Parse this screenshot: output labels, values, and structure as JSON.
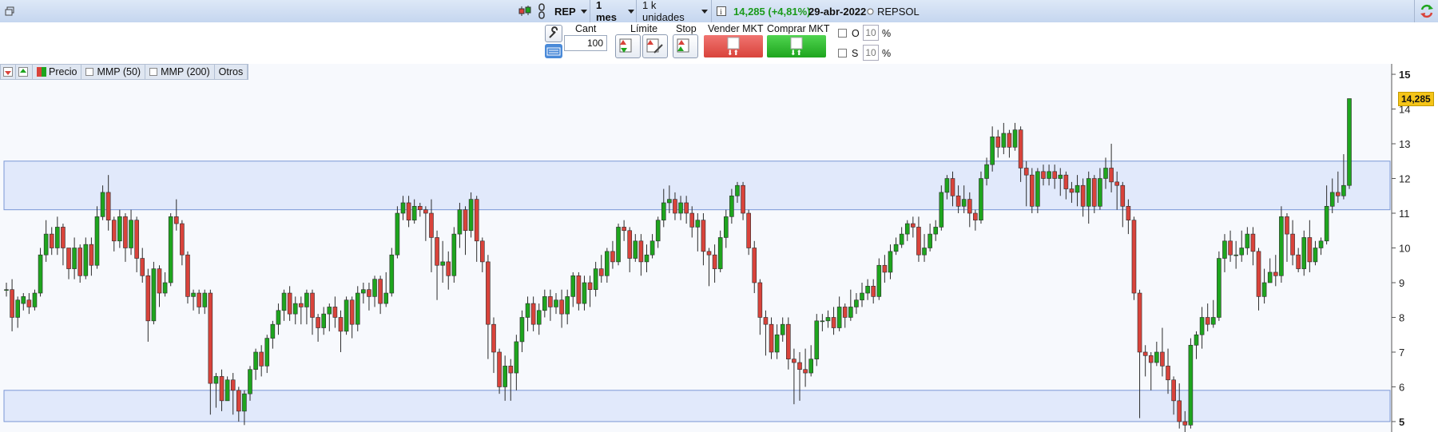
{
  "toolbar": {
    "ticker": "REP",
    "period": "1 mes",
    "units": "1 k unidades",
    "price": "14,285",
    "change": "(+4,81%)",
    "date": "29-abr-2022",
    "name": "REPSOL",
    "colors": {
      "up": "#1ea51e",
      "down": "#d9433b"
    }
  },
  "order": {
    "cant_label": "Cant",
    "cant_value": "100",
    "limit_label": "Límite",
    "stop_label": "Stop",
    "sell_label": "Vender MKT",
    "buy_label": "Comprar MKT",
    "o_label": "O",
    "s_label": "S",
    "o_value": "10",
    "s_value": "10",
    "pct": "%"
  },
  "legend": {
    "precio": "Precio",
    "mmp50": "MMP (50)",
    "mmp200": "MMP (200)",
    "otros": "Otros"
  },
  "chart_data": {
    "type": "candlestick",
    "ylim": [
      4.7,
      15.3
    ],
    "yticks": [
      5,
      6,
      7,
      8,
      9,
      10,
      11,
      12,
      13,
      14,
      15
    ],
    "last_price_label": "14,285",
    "zones": [
      {
        "low": 11.1,
        "high": 12.5
      },
      {
        "low": 5.0,
        "high": 5.9
      }
    ],
    "candles": [
      [
        8.8,
        8.8,
        9.0,
        8.6
      ],
      [
        8.8,
        8.0,
        9.1,
        7.6
      ],
      [
        8.0,
        8.5,
        8.6,
        7.7
      ],
      [
        8.4,
        8.6,
        8.7,
        8.2
      ],
      [
        8.5,
        8.3,
        8.7,
        8.1
      ],
      [
        8.3,
        8.7,
        8.8,
        8.2
      ],
      [
        8.7,
        9.8,
        10.0,
        8.6
      ],
      [
        9.8,
        10.4,
        10.8,
        9.6
      ],
      [
        10.4,
        10.0,
        10.6,
        9.8
      ],
      [
        10.0,
        10.6,
        10.9,
        9.8
      ],
      [
        10.6,
        10.0,
        10.7,
        9.5
      ],
      [
        10.0,
        9.4,
        10.0,
        9.1
      ],
      [
        9.4,
        10.0,
        10.3,
        9.1
      ],
      [
        10.0,
        9.2,
        10.1,
        9.0
      ],
      [
        9.2,
        10.1,
        10.3,
        9.1
      ],
      [
        10.1,
        9.5,
        10.3,
        9.2
      ],
      [
        9.5,
        10.9,
        11.2,
        9.4
      ],
      [
        10.9,
        11.6,
        11.8,
        10.8
      ],
      [
        11.6,
        10.8,
        12.1,
        10.5
      ],
      [
        10.8,
        10.2,
        10.9,
        9.9
      ],
      [
        10.2,
        10.9,
        11.1,
        10.0
      ],
      [
        10.9,
        10.0,
        11.0,
        9.6
      ],
      [
        10.0,
        10.8,
        11.1,
        9.8
      ],
      [
        10.8,
        9.7,
        10.9,
        9.3
      ],
      [
        9.7,
        9.2,
        10.0,
        9.0
      ],
      [
        9.2,
        7.9,
        9.4,
        7.3
      ],
      [
        7.9,
        9.4,
        9.6,
        7.8
      ],
      [
        9.4,
        8.7,
        9.5,
        8.3
      ],
      [
        8.7,
        9.0,
        9.3,
        8.6
      ],
      [
        9.0,
        10.9,
        11.0,
        8.9
      ],
      [
        10.9,
        10.7,
        11.4,
        10.5
      ],
      [
        10.7,
        9.8,
        10.8,
        9.5
      ],
      [
        9.8,
        8.6,
        9.9,
        8.4
      ],
      [
        8.6,
        8.7,
        8.8,
        8.2
      ],
      [
        8.7,
        8.3,
        8.8,
        8.1
      ],
      [
        8.3,
        8.7,
        8.8,
        8.1
      ],
      [
        8.7,
        6.1,
        8.8,
        5.2
      ],
      [
        6.1,
        6.3,
        6.4,
        5.4
      ],
      [
        6.3,
        5.6,
        6.5,
        5.3
      ],
      [
        5.6,
        6.2,
        6.3,
        5.6
      ],
      [
        6.2,
        5.9,
        6.4,
        5.2
      ],
      [
        5.9,
        5.3,
        6.0,
        5.0
      ],
      [
        5.3,
        5.8,
        5.9,
        4.9
      ],
      [
        5.8,
        6.5,
        6.6,
        5.6
      ],
      [
        6.5,
        7.0,
        7.1,
        6.2
      ],
      [
        7.0,
        6.6,
        7.2,
        6.3
      ],
      [
        6.6,
        7.4,
        7.5,
        6.4
      ],
      [
        7.4,
        7.8,
        7.9,
        7.1
      ],
      [
        7.8,
        8.2,
        8.4,
        7.5
      ],
      [
        8.2,
        8.7,
        8.8,
        7.9
      ],
      [
        8.7,
        8.1,
        8.9,
        7.9
      ],
      [
        8.1,
        8.4,
        8.6,
        7.8
      ],
      [
        8.4,
        8.3,
        8.6,
        7.8
      ],
      [
        8.3,
        8.7,
        8.8,
        7.8
      ],
      [
        8.7,
        8.0,
        8.8,
        7.5
      ],
      [
        8.0,
        7.7,
        8.1,
        7.3
      ],
      [
        7.7,
        8.1,
        8.3,
        7.5
      ],
      [
        8.1,
        8.3,
        8.4,
        7.6
      ],
      [
        8.3,
        8.0,
        8.6,
        7.7
      ],
      [
        8.0,
        7.6,
        8.2,
        7.0
      ],
      [
        7.6,
        8.5,
        8.6,
        7.5
      ],
      [
        8.5,
        7.8,
        8.6,
        7.4
      ],
      [
        7.8,
        8.7,
        8.9,
        7.6
      ],
      [
        8.7,
        8.8,
        9.0,
        8.4
      ],
      [
        8.8,
        8.6,
        9.0,
        8.2
      ],
      [
        8.6,
        9.1,
        9.2,
        8.3
      ],
      [
        9.1,
        8.4,
        9.2,
        8.1
      ],
      [
        8.4,
        8.7,
        9.3,
        8.3
      ],
      [
        8.7,
        9.8,
        10.0,
        8.6
      ],
      [
        9.8,
        11.0,
        11.2,
        9.7
      ],
      [
        11.0,
        11.3,
        11.5,
        10.8
      ],
      [
        11.3,
        10.8,
        11.5,
        10.6
      ],
      [
        10.8,
        11.2,
        11.4,
        10.7
      ],
      [
        11.2,
        11.1,
        11.3,
        10.9
      ],
      [
        11.1,
        11.0,
        11.2,
        10.2
      ],
      [
        11.0,
        10.3,
        11.4,
        9.3
      ],
      [
        10.3,
        9.5,
        10.5,
        8.5
      ],
      [
        9.5,
        9.6,
        10.2,
        9.0
      ],
      [
        9.6,
        9.2,
        9.9,
        8.8
      ],
      [
        9.2,
        10.4,
        10.6,
        9.0
      ],
      [
        10.4,
        11.1,
        11.3,
        10.0
      ],
      [
        11.1,
        10.5,
        11.2,
        9.8
      ],
      [
        10.5,
        11.4,
        11.6,
        10.3
      ],
      [
        11.4,
        10.2,
        11.5,
        9.6
      ],
      [
        10.2,
        9.6,
        10.3,
        9.3
      ],
      [
        9.6,
        7.8,
        9.8,
        6.8
      ],
      [
        7.8,
        7.0,
        8.0,
        6.4
      ],
      [
        7.0,
        6.0,
        7.1,
        5.8
      ],
      [
        6.0,
        6.6,
        6.9,
        5.6
      ],
      [
        6.6,
        6.4,
        6.8,
        5.6
      ],
      [
        6.4,
        7.3,
        7.5,
        5.9
      ],
      [
        7.3,
        8.0,
        8.2,
        7.0
      ],
      [
        8.0,
        8.4,
        8.6,
        7.6
      ],
      [
        8.4,
        7.8,
        8.6,
        7.6
      ],
      [
        7.8,
        8.2,
        8.4,
        7.5
      ],
      [
        8.2,
        8.6,
        8.8,
        8.0
      ],
      [
        8.6,
        8.3,
        8.8,
        7.9
      ],
      [
        8.3,
        8.5,
        8.7,
        8.1
      ],
      [
        8.5,
        8.1,
        8.8,
        7.7
      ],
      [
        8.1,
        8.6,
        8.8,
        7.8
      ],
      [
        8.6,
        9.2,
        9.3,
        8.3
      ],
      [
        9.2,
        8.4,
        9.3,
        8.2
      ],
      [
        8.4,
        9.0,
        9.2,
        8.2
      ],
      [
        9.0,
        8.8,
        9.2,
        8.3
      ],
      [
        8.8,
        9.4,
        9.6,
        8.6
      ],
      [
        9.4,
        9.2,
        9.8,
        9.0
      ],
      [
        9.2,
        9.9,
        10.0,
        9.0
      ],
      [
        9.9,
        9.6,
        10.2,
        9.4
      ],
      [
        9.6,
        10.6,
        10.7,
        9.5
      ],
      [
        10.6,
        10.5,
        10.8,
        10.2
      ],
      [
        10.5,
        9.7,
        10.6,
        9.3
      ],
      [
        9.7,
        10.2,
        10.4,
        9.6
      ],
      [
        10.2,
        9.6,
        10.4,
        9.2
      ],
      [
        9.6,
        9.8,
        10.1,
        9.3
      ],
      [
        9.8,
        10.2,
        10.4,
        9.7
      ],
      [
        10.2,
        10.8,
        10.9,
        10.0
      ],
      [
        10.8,
        11.3,
        11.7,
        10.6
      ],
      [
        11.3,
        11.4,
        11.8,
        11.0
      ],
      [
        11.4,
        11.0,
        11.6,
        10.8
      ],
      [
        11.0,
        11.3,
        11.5,
        10.8
      ],
      [
        11.3,
        11.0,
        11.5,
        10.7
      ],
      [
        11.0,
        10.6,
        11.2,
        10.3
      ],
      [
        10.6,
        10.8,
        11.0,
        9.9
      ],
      [
        10.8,
        9.9,
        11.0,
        9.5
      ],
      [
        9.9,
        9.8,
        10.0,
        8.9
      ],
      [
        9.8,
        9.4,
        10.1,
        9.0
      ],
      [
        9.4,
        10.3,
        10.5,
        9.3
      ],
      [
        10.3,
        10.9,
        11.1,
        10.0
      ],
      [
        10.9,
        11.5,
        11.7,
        10.7
      ],
      [
        11.5,
        11.8,
        11.9,
        11.3
      ],
      [
        11.8,
        11.0,
        11.9,
        10.8
      ],
      [
        11.0,
        10.0,
        11.1,
        9.8
      ],
      [
        10.0,
        9.0,
        10.2,
        8.7
      ],
      [
        9.0,
        8.0,
        9.1,
        7.5
      ],
      [
        8.0,
        7.8,
        8.2,
        6.9
      ],
      [
        7.8,
        7.0,
        8.0,
        6.8
      ],
      [
        7.0,
        7.5,
        7.8,
        6.8
      ],
      [
        7.5,
        7.8,
        8.0,
        7.3
      ],
      [
        7.8,
        6.8,
        8.0,
        6.5
      ],
      [
        6.8,
        6.7,
        7.1,
        5.5
      ],
      [
        6.7,
        6.5,
        7.0,
        5.6
      ],
      [
        6.5,
        6.4,
        7.1,
        6.0
      ],
      [
        6.4,
        6.8,
        7.2,
        6.3
      ],
      [
        6.8,
        7.9,
        8.1,
        6.6
      ],
      [
        7.9,
        7.9,
        8.1,
        7.6
      ],
      [
        7.9,
        8.0,
        8.2,
        7.7
      ],
      [
        8.0,
        7.7,
        8.3,
        7.5
      ],
      [
        7.7,
        8.3,
        8.6,
        7.6
      ],
      [
        8.3,
        8.0,
        8.4,
        7.7
      ],
      [
        8.0,
        8.3,
        8.8,
        7.9
      ],
      [
        8.3,
        8.5,
        8.7,
        8.1
      ],
      [
        8.5,
        8.7,
        9.0,
        8.3
      ],
      [
        8.7,
        8.9,
        9.1,
        8.5
      ],
      [
        8.9,
        8.6,
        9.1,
        8.4
      ],
      [
        8.6,
        9.5,
        9.7,
        8.5
      ],
      [
        9.5,
        9.3,
        9.8,
        9.0
      ],
      [
        9.3,
        9.9,
        10.1,
        9.1
      ],
      [
        9.9,
        10.1,
        10.3,
        9.8
      ],
      [
        10.1,
        10.4,
        10.6,
        10.0
      ],
      [
        10.4,
        10.7,
        10.8,
        10.2
      ],
      [
        10.7,
        10.6,
        10.9,
        10.3
      ],
      [
        10.6,
        9.8,
        10.9,
        9.6
      ],
      [
        9.8,
        10.0,
        10.4,
        9.6
      ],
      [
        10.0,
        10.4,
        10.7,
        9.9
      ],
      [
        10.4,
        10.6,
        10.8,
        10.2
      ],
      [
        10.6,
        11.6,
        11.8,
        10.5
      ],
      [
        11.6,
        12.0,
        12.1,
        11.4
      ],
      [
        12.0,
        11.5,
        12.2,
        11.2
      ],
      [
        11.5,
        11.2,
        11.8,
        11.0
      ],
      [
        11.2,
        11.4,
        11.8,
        11.0
      ],
      [
        11.4,
        11.0,
        11.6,
        10.6
      ],
      [
        11.0,
        10.8,
        11.1,
        10.5
      ],
      [
        10.8,
        12.0,
        12.2,
        10.7
      ],
      [
        12.0,
        12.4,
        12.6,
        11.8
      ],
      [
        12.4,
        13.2,
        13.5,
        12.2
      ],
      [
        13.2,
        12.9,
        13.4,
        12.6
      ],
      [
        12.9,
        13.3,
        13.6,
        12.7
      ],
      [
        13.3,
        12.9,
        13.4,
        12.6
      ],
      [
        12.9,
        13.4,
        13.6,
        12.8
      ],
      [
        13.4,
        12.3,
        13.5,
        11.9
      ],
      [
        12.3,
        12.1,
        12.5,
        11.2
      ],
      [
        12.1,
        11.2,
        12.3,
        11.0
      ],
      [
        11.2,
        12.2,
        12.3,
        11.0
      ],
      [
        12.2,
        12.0,
        12.4,
        11.8
      ],
      [
        12.0,
        12.2,
        12.4,
        11.8
      ],
      [
        12.2,
        12.0,
        12.4,
        11.7
      ],
      [
        12.0,
        12.1,
        12.3,
        11.5
      ],
      [
        12.1,
        11.7,
        12.2,
        11.4
      ],
      [
        11.7,
        11.6,
        11.9,
        11.3
      ],
      [
        11.6,
        11.8,
        12.1,
        11.2
      ],
      [
        11.8,
        11.2,
        12.0,
        10.9
      ],
      [
        11.2,
        12.0,
        12.2,
        10.7
      ],
      [
        12.0,
        11.2,
        12.1,
        11.0
      ],
      [
        11.2,
        12.0,
        12.3,
        11.1
      ],
      [
        12.0,
        12.3,
        12.6,
        11.7
      ],
      [
        12.3,
        11.9,
        13.0,
        11.6
      ],
      [
        11.9,
        11.8,
        12.2,
        11.1
      ],
      [
        11.8,
        11.2,
        11.9,
        10.6
      ],
      [
        11.2,
        10.8,
        11.4,
        10.4
      ],
      [
        10.8,
        8.7,
        10.9,
        8.5
      ],
      [
        8.7,
        7.0,
        8.8,
        5.1
      ],
      [
        7.0,
        6.9,
        7.2,
        6.3
      ],
      [
        6.9,
        6.7,
        7.0,
        5.9
      ],
      [
        6.7,
        7.0,
        7.3,
        6.6
      ],
      [
        7.0,
        6.6,
        7.7,
        6.3
      ],
      [
        6.6,
        6.2,
        7.1,
        5.8
      ],
      [
        6.2,
        5.6,
        6.3,
        5.2
      ],
      [
        5.6,
        5.0,
        6.1,
        4.8
      ],
      [
        5.0,
        4.9,
        5.3,
        4.7
      ],
      [
        4.9,
        7.2,
        7.4,
        4.8
      ],
      [
        7.2,
        7.5,
        7.6,
        6.8
      ],
      [
        7.5,
        8.0,
        8.3,
        7.1
      ],
      [
        8.0,
        7.8,
        8.4,
        7.6
      ],
      [
        7.8,
        8.0,
        8.5,
        7.7
      ],
      [
        8.0,
        9.7,
        9.9,
        7.9
      ],
      [
        9.7,
        10.2,
        10.4,
        9.3
      ],
      [
        10.2,
        9.8,
        10.5,
        9.6
      ],
      [
        9.8,
        9.8,
        10.2,
        9.4
      ],
      [
        9.8,
        10.0,
        10.5,
        9.6
      ],
      [
        10.0,
        10.4,
        10.6,
        9.8
      ],
      [
        10.4,
        9.9,
        10.6,
        9.5
      ],
      [
        9.9,
        8.6,
        10.0,
        8.2
      ],
      [
        8.6,
        9.0,
        9.4,
        8.4
      ],
      [
        9.0,
        9.3,
        9.7,
        9.0
      ],
      [
        9.3,
        9.2,
        9.8,
        8.9
      ],
      [
        9.2,
        10.9,
        11.2,
        9.0
      ],
      [
        10.9,
        10.4,
        11.0,
        9.6
      ],
      [
        10.4,
        9.8,
        10.8,
        9.5
      ],
      [
        9.8,
        9.4,
        10.0,
        9.3
      ],
      [
        9.4,
        10.3,
        10.5,
        9.2
      ],
      [
        10.3,
        9.6,
        10.8,
        9.3
      ],
      [
        9.6,
        10.0,
        10.2,
        9.5
      ],
      [
        10.0,
        10.2,
        10.3,
        9.8
      ],
      [
        10.2,
        11.2,
        11.8,
        10.1
      ],
      [
        11.2,
        11.6,
        12.0,
        11.0
      ],
      [
        11.6,
        11.5,
        12.2,
        11.3
      ],
      [
        11.5,
        11.8,
        12.7,
        11.4
      ],
      [
        11.8,
        14.3,
        14.3,
        11.7
      ]
    ]
  }
}
